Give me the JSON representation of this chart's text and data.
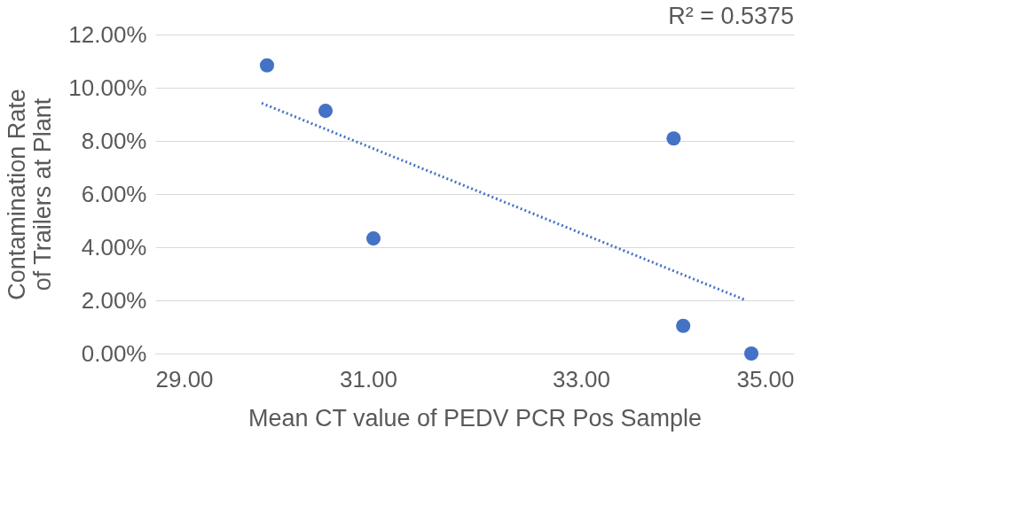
{
  "chart_data": {
    "type": "scatter",
    "xlabel": "Mean CT value of PEDV PCR Pos Sample",
    "ylabel": "Contamination Rate of Trailers at Plant",
    "annotations": [
      "R² = 0.5375"
    ],
    "xlim": [
      29,
      35
    ],
    "xticks": [
      {
        "value": 29,
        "label": "29.00"
      },
      {
        "value": 31,
        "label": "31.00"
      },
      {
        "value": 33,
        "label": "33.00"
      },
      {
        "value": 35,
        "label": "35.00"
      }
    ],
    "ylim": [
      0,
      12
    ],
    "yticks": [
      {
        "value": 0,
        "label": "0.00%"
      },
      {
        "value": 2,
        "label": "2.00%"
      },
      {
        "value": 4,
        "label": "4.00%"
      },
      {
        "value": 6,
        "label": "6.00%"
      },
      {
        "value": 8,
        "label": "8.00%"
      },
      {
        "value": 10,
        "label": "10.00%"
      },
      {
        "value": 12,
        "label": "12.00%"
      }
    ],
    "grid": "y",
    "legend": false,
    "series": [
      {
        "type": "scatter",
        "color": "#4472c4",
        "marker": "circle",
        "x": [
          30.05,
          30.6,
          31.05,
          33.87,
          33.96,
          34.6
        ],
        "values": [
          10.84,
          9.13,
          4.33,
          8.09,
          1.04,
          0
        ]
      },
      {
        "type": "line",
        "color": "#4472c4",
        "line_style": "dotted",
        "x": [
          30.0,
          34.55
        ],
        "values": [
          9.42,
          2.0
        ]
      }
    ]
  }
}
